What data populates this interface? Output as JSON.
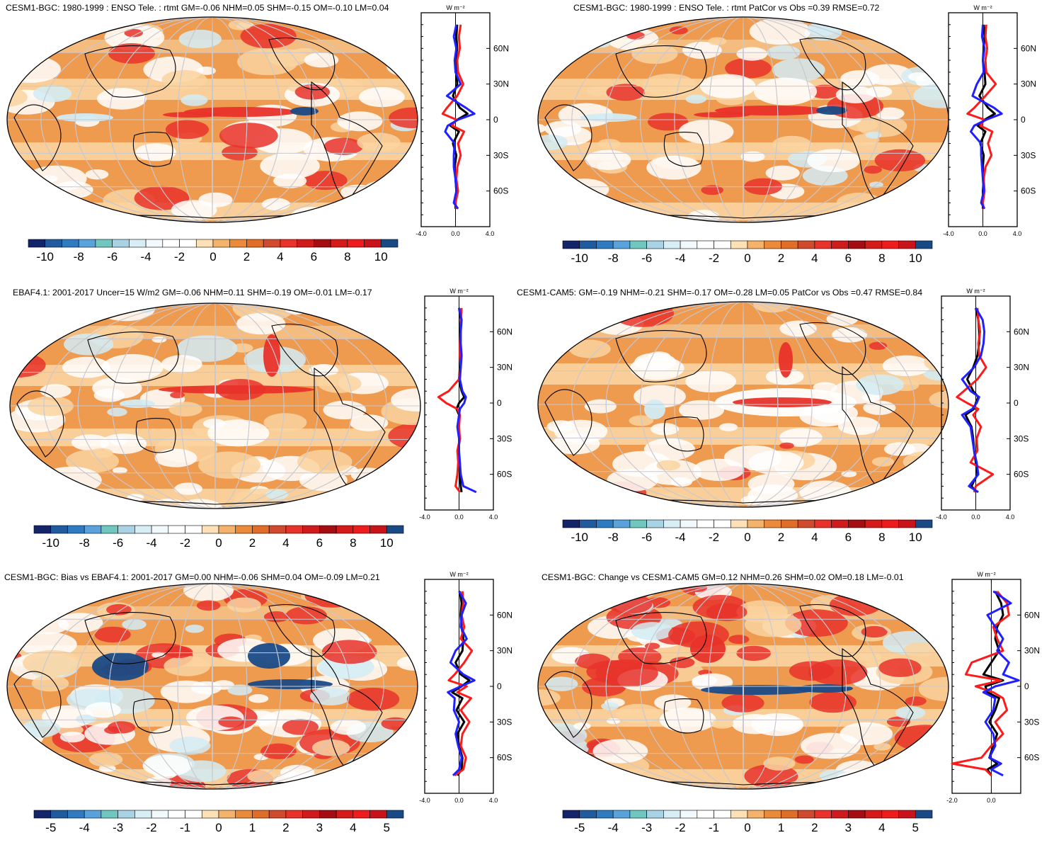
{
  "colors": {
    "palette": [
      "#14246a",
      "#1f5b9e",
      "#2f7bc2",
      "#5aa2db",
      "#6fc7c0",
      "#a9d3e4",
      "#d7eef5",
      "#f2f9fc",
      "#ffffff",
      "#ffffff",
      "#fde0b6",
      "#f5b26a",
      "#ea8a3a",
      "#e06d28",
      "#d24a2d",
      "#e8322a",
      "#cf1b1b",
      "#a40d12",
      "#d61a1a",
      "#ee1c1c",
      "#c8131b",
      "#1a4a86"
    ],
    "ocean_base": "#fad4a0",
    "warm": "#ee9a4f",
    "hot": "#e8322a",
    "cool": "#d2ecf4",
    "deepblue": "#1a4a86",
    "line_red": "#ff1a1a",
    "line_blue": "#1f1fff",
    "line_black": "#000000"
  },
  "panels": [
    {
      "id": "p1",
      "title": "CESM1-BGC: 1980-1999 : ENSO Tele. : rtmt GM=-0.06 NHM=0.05 SHM=-0.15 OM=-0.10 LM=0.04",
      "units": "W m⁻²",
      "colorbar_labels": [
        "-10",
        "-8",
        "-6",
        "-4",
        "-2",
        "0",
        "2",
        "4",
        "6",
        "8",
        "10"
      ],
      "zonal_xticks": [
        "-4.0",
        "0.0",
        "4.0"
      ],
      "lat_ticks": [
        "60N",
        "30N",
        "0",
        "30S",
        "60S"
      ]
    },
    {
      "id": "p2",
      "title": "CESM1-BGC: 1980-1999 : ENSO Tele. : rtmt PatCor vs Obs =0.39 RMSE=0.72",
      "units": "W m⁻²",
      "colorbar_labels": [
        "-10",
        "-8",
        "-6",
        "-4",
        "-2",
        "0",
        "2",
        "4",
        "6",
        "8",
        "10"
      ],
      "zonal_xticks": [
        "-4.0",
        "0.0",
        "4.0"
      ],
      "lat_ticks": [
        "60N",
        "30N",
        "0",
        "30S",
        "60S"
      ]
    },
    {
      "id": "p3",
      "title": "EBAF4.1: 2001-2017 Uncer=15 W/m2 GM=-0.06 NHM=0.11 SHM=-0.19 OM=-0.01 LM=-0.17",
      "units": "W m⁻²",
      "colorbar_labels": [
        "-10",
        "-8",
        "-6",
        "-4",
        "-2",
        "0",
        "2",
        "4",
        "6",
        "8",
        "10"
      ],
      "zonal_xticks": [
        "-4.0",
        "0.0",
        "4.0"
      ],
      "lat_ticks": [
        "60N",
        "30N",
        "0",
        "30S",
        "60S"
      ]
    },
    {
      "id": "p4",
      "title": "CESM1-CAM5: GM=-0.19 NHM=-0.21 SHM=-0.17 OM=-0.28 LM=0.05 PatCor vs Obs =0.47 RMSE=0.84",
      "units": "W m⁻²",
      "colorbar_labels": [
        "-10",
        "-8",
        "-6",
        "-4",
        "-2",
        "0",
        "2",
        "4",
        "6",
        "8",
        "10"
      ],
      "zonal_xticks": [
        "-4.0",
        "0.0",
        "4.0"
      ],
      "lat_ticks": [
        "60N",
        "30N",
        "0",
        "30S",
        "60S"
      ]
    },
    {
      "id": "p5",
      "title": "CESM1-BGC: Bias vs EBAF4.1: 2001-2017 GM=0.00 NHM=-0.06 SHM=0.04 OM=-0.09 LM=0.21",
      "units": "W m⁻²",
      "colorbar_labels": [
        "-5",
        "-4",
        "-3",
        "-2",
        "-1",
        "0",
        "1",
        "2",
        "3",
        "4",
        "5"
      ],
      "zonal_xticks": [
        "-4.0",
        "0.0",
        "4.0"
      ],
      "lat_ticks": [
        "60N",
        "30N",
        "0",
        "30S",
        "60S"
      ]
    },
    {
      "id": "p6",
      "title": "CESM1-BGC: Change vs CESM1-CAM5 GM=0.12 NHM=0.26 SHM=0.02 OM=0.18 LM=-0.01",
      "units": "W m⁻²",
      "colorbar_labels": [
        "-5",
        "-4",
        "-3",
        "-2",
        "-1",
        "0",
        "1",
        "2",
        "3",
        "4",
        "5"
      ],
      "zonal_xticks": [
        "-2.0",
        "0.0"
      ],
      "lat_ticks": [
        "60N",
        "30N",
        "0",
        "30S",
        "60S"
      ]
    }
  ],
  "chart_data": [
    {
      "type": "heatmap",
      "title": "CESM1-BGC: 1980-1999 : ENSO Tele. : rtmt GM=-0.06 NHM=0.05 SHM=-0.15 OM=-0.10 LM=0.04",
      "colorbar": {
        "min": -10,
        "max": 10,
        "ticks": [
          -10,
          -8,
          -6,
          -4,
          -2,
          0,
          2,
          4,
          6,
          8,
          10
        ]
      },
      "zonal_mean_profile": {
        "xlim": [
          -4,
          4
        ],
        "xticks": [
          -4.0,
          0.0,
          4.0
        ],
        "lat_ticks": [
          "60N",
          "30N",
          "0",
          "30S",
          "60S"
        ],
        "lat": [
          80,
          70,
          60,
          50,
          40,
          30,
          20,
          10,
          5,
          0,
          -5,
          -10,
          -20,
          -30,
          -40,
          -50,
          -60,
          -70,
          -75
        ],
        "series": [
          {
            "color": "#000000",
            "values": [
              0.2,
              0.1,
              0.2,
              0.0,
              0.1,
              0.2,
              -0.3,
              0.5,
              1.4,
              0.2,
              -0.6,
              0.4,
              -0.3,
              0.1,
              -0.1,
              0.0,
              0.1,
              0.0,
              0.0
            ]
          },
          {
            "color": "#ff1a1a",
            "values": [
              0.6,
              0.4,
              0.5,
              0.2,
              0.3,
              0.9,
              0.2,
              -1.0,
              -1.5,
              0.1,
              -0.4,
              1.0,
              0.3,
              0.6,
              0.2,
              0.1,
              0.3,
              0.0,
              0.1
            ]
          },
          {
            "color": "#1f1fff",
            "values": [
              0.1,
              -0.2,
              0.1,
              -0.1,
              0.0,
              0.6,
              -1.0,
              1.2,
              2.2,
              0.3,
              -0.9,
              -1.2,
              -0.1,
              -0.2,
              -0.2,
              0.0,
              0.1,
              -0.2,
              0.3
            ]
          }
        ]
      }
    },
    {
      "type": "heatmap",
      "title": "CESM1-BGC: 1980-1999 : ENSO Tele. : rtmt PatCor vs Obs =0.39 RMSE=0.72",
      "colorbar": {
        "min": -10,
        "max": 10,
        "ticks": [
          -10,
          -8,
          -6,
          -4,
          -2,
          0,
          2,
          4,
          6,
          8,
          10
        ]
      },
      "zonal_mean_profile": {
        "xlim": [
          -4,
          4
        ],
        "xticks": [
          -4.0,
          0.0,
          4.0
        ],
        "lat_ticks": [
          "60N",
          "30N",
          "0",
          "30S",
          "60S"
        ],
        "lat": [
          80,
          70,
          60,
          50,
          40,
          30,
          20,
          10,
          5,
          0,
          -5,
          -10,
          -20,
          -30,
          -40,
          -50,
          -60,
          -70,
          -75
        ],
        "series": [
          {
            "color": "#000000",
            "values": [
              0.1,
              0.2,
              0.1,
              0.0,
              0.2,
              0.3,
              -0.4,
              0.6,
              1.4,
              0.2,
              -0.6,
              0.3,
              -0.3,
              0.1,
              0.0,
              0.1,
              0.0,
              0.0,
              0.0
            ]
          },
          {
            "color": "#ff1a1a",
            "values": [
              0.4,
              0.3,
              0.5,
              0.3,
              0.4,
              1.5,
              0.3,
              -1.0,
              -1.8,
              0.2,
              -0.3,
              1.1,
              0.6,
              1.0,
              0.3,
              0.1,
              0.2,
              0.0,
              0.1
            ]
          },
          {
            "color": "#1f1fff",
            "values": [
              0.0,
              -0.1,
              0.2,
              0.0,
              0.1,
              -0.7,
              -1.2,
              1.3,
              2.2,
              0.4,
              -1.0,
              -1.4,
              -0.2,
              -0.2,
              -0.1,
              0.0,
              0.1,
              -0.2,
              0.2
            ]
          }
        ]
      }
    },
    {
      "type": "heatmap",
      "title": "EBAF4.1: 2001-2017 Uncer=15 W/m2 GM=-0.06 NHM=0.11 SHM=-0.19 OM=-0.01 LM=-0.17",
      "colorbar": {
        "min": -10,
        "max": 10,
        "ticks": [
          -10,
          -8,
          -6,
          -4,
          -2,
          0,
          2,
          4,
          6,
          8,
          10
        ]
      },
      "zonal_mean_profile": {
        "xlim": [
          -4,
          4
        ],
        "xticks": [
          -4.0,
          0.0,
          4.0
        ],
        "lat_ticks": [
          "60N",
          "30N",
          "0",
          "30S",
          "60S"
        ],
        "lat": [
          80,
          70,
          60,
          50,
          40,
          30,
          20,
          10,
          5,
          0,
          -5,
          -10,
          -20,
          -30,
          -40,
          -50,
          -60,
          -70,
          -75
        ],
        "series": [
          {
            "color": "#000000",
            "values": [
              0.0,
              0.2,
              0.1,
              0.1,
              0.2,
              0.1,
              0.0,
              0.3,
              0.6,
              0.0,
              -0.3,
              0.0,
              -0.1,
              0.1,
              -0.1,
              0.0,
              0.1,
              0.2,
              0.3
            ]
          },
          {
            "color": "#ff1a1a",
            "values": [
              0.3,
              0.2,
              0.2,
              0.1,
              0.1,
              0.2,
              0.0,
              -1.2,
              -2.4,
              -1.5,
              -0.2,
              0.1,
              0.0,
              0.1,
              -0.2,
              -0.1,
              -0.2,
              -0.4,
              0.1
            ]
          },
          {
            "color": "#1f1fff",
            "values": [
              0.0,
              0.3,
              0.2,
              0.2,
              0.3,
              0.2,
              0.1,
              0.4,
              0.8,
              0.6,
              0.1,
              0.0,
              -0.2,
              0.0,
              0.0,
              0.1,
              0.2,
              0.5,
              2.0
            ]
          }
        ]
      }
    },
    {
      "type": "heatmap",
      "title": "CESM1-CAM5: GM=-0.19 NHM=-0.21 SHM=-0.17 OM=-0.28 LM=0.05 PatCor vs Obs =0.47 RMSE=0.84",
      "colorbar": {
        "min": -10,
        "max": 10,
        "ticks": [
          -10,
          -8,
          -6,
          -4,
          -2,
          0,
          2,
          4,
          6,
          8,
          10
        ]
      },
      "zonal_mean_profile": {
        "xlim": [
          -4,
          4
        ],
        "xticks": [
          -4.0,
          0.0,
          4.0
        ],
        "lat_ticks": [
          "60N",
          "30N",
          "0",
          "30S",
          "60S"
        ],
        "lat": [
          80,
          70,
          60,
          50,
          40,
          30,
          20,
          10,
          5,
          0,
          -5,
          -10,
          -20,
          -30,
          -40,
          -50,
          -60,
          -70,
          -75
        ],
        "series": [
          {
            "color": "#000000",
            "values": [
              0.0,
              0.3,
              0.4,
              0.4,
              0.2,
              -0.3,
              -1.0,
              -0.3,
              0.3,
              0.0,
              -0.2,
              -1.2,
              -0.5,
              -0.3,
              -0.2,
              0.0,
              0.2,
              -0.5,
              0.1
            ]
          },
          {
            "color": "#ff1a1a",
            "values": [
              0.2,
              0.3,
              0.5,
              0.3,
              0.4,
              1.2,
              0.2,
              -1.4,
              -2.2,
              -1.0,
              0.3,
              -0.3,
              0.6,
              0.1,
              0.2,
              -0.6,
              2.0,
              0.0,
              -0.2
            ]
          },
          {
            "color": "#1f1fff",
            "values": [
              0.0,
              0.8,
              1.0,
              0.9,
              0.6,
              -0.2,
              -1.6,
              -0.6,
              0.4,
              0.1,
              -0.4,
              -1.6,
              -0.6,
              -0.4,
              -0.2,
              0.1,
              0.3,
              -0.8,
              0.3
            ]
          }
        ]
      }
    },
    {
      "type": "heatmap",
      "title": "CESM1-BGC: Bias vs EBAF4.1: 2001-2017 GM=0.00 NHM=-0.06 SHM=0.04 OM=-0.09 LM=0.21",
      "colorbar": {
        "min": -5,
        "max": 5,
        "ticks": [
          -5,
          -4,
          -3,
          -2,
          -1,
          0,
          1,
          2,
          3,
          4,
          5
        ]
      },
      "zonal_mean_profile": {
        "xlim": [
          -4,
          4
        ],
        "xticks": [
          -4.0,
          0.0,
          4.0
        ],
        "lat_ticks": [
          "60N",
          "30N",
          "0",
          "30S",
          "60S"
        ],
        "lat": [
          80,
          70,
          60,
          50,
          40,
          30,
          20,
          10,
          5,
          0,
          -5,
          -10,
          -20,
          -30,
          -40,
          -50,
          -60,
          -70,
          -75
        ],
        "series": [
          {
            "color": "#000000",
            "values": [
              0.1,
              0.3,
              0.2,
              0.3,
              0.5,
              0.4,
              -0.4,
              0.2,
              1.2,
              0.3,
              -0.8,
              0.4,
              -0.3,
              0.6,
              -0.2,
              0.0,
              0.4,
              0.3,
              -0.2
            ]
          },
          {
            "color": "#ff1a1a",
            "values": [
              0.4,
              0.5,
              0.3,
              0.6,
              0.2,
              1.5,
              0.6,
              -0.5,
              -1.2,
              0.9,
              -0.2,
              1.4,
              0.2,
              1.2,
              0.4,
              0.2,
              0.8,
              0.5,
              -0.5
            ]
          },
          {
            "color": "#1f1fff",
            "values": [
              0.0,
              0.8,
              0.3,
              0.2,
              0.9,
              -0.4,
              -1.0,
              0.5,
              1.8,
              0.2,
              -1.3,
              -0.5,
              -0.6,
              0.0,
              -0.4,
              -0.1,
              0.3,
              0.0,
              -0.7
            ]
          }
        ]
      }
    },
    {
      "type": "heatmap",
      "title": "CESM1-BGC: Change vs CESM1-CAM5 GM=0.12 NHM=0.26 SHM=0.02 OM=0.18 LM=-0.01",
      "colorbar": {
        "min": -5,
        "max": 5,
        "ticks": [
          -5,
          -4,
          -3,
          -2,
          -1,
          0,
          1,
          2,
          3,
          4,
          5
        ]
      },
      "zonal_mean_profile": {
        "xlim": [
          -2,
          1.5
        ],
        "xticks": [
          -2.0,
          0.0
        ],
        "lat_ticks": [
          "60N",
          "30N",
          "0",
          "30S",
          "60S"
        ],
        "lat": [
          80,
          70,
          60,
          50,
          40,
          30,
          20,
          10,
          5,
          0,
          -5,
          -10,
          -20,
          -30,
          -40,
          -50,
          -60,
          -65,
          -70,
          -75
        ],
        "series": [
          {
            "color": "#000000",
            "values": [
              0.2,
              0.5,
              0.6,
              0.3,
              0.2,
              0.4,
              0.0,
              -0.4,
              0.6,
              -0.3,
              -0.2,
              0.4,
              0.2,
              -0.1,
              0.3,
              0.1,
              -0.1,
              0.3,
              -0.2,
              0.0
            ]
          },
          {
            "color": "#ff1a1a",
            "values": [
              0.3,
              0.8,
              0.9,
              0.1,
              0.3,
              0.6,
              -1.0,
              -1.3,
              0.5,
              -0.8,
              0.1,
              0.6,
              0.8,
              0.2,
              0.6,
              0.0,
              -0.5,
              -2.0,
              -0.3,
              0.0
            ]
          },
          {
            "color": "#1f1fff",
            "values": [
              0.1,
              1.0,
              -0.2,
              0.2,
              0.6,
              0.3,
              0.9,
              0.6,
              1.4,
              0.2,
              -0.4,
              0.2,
              0.1,
              -0.3,
              0.1,
              0.2,
              -0.1,
              0.5,
              0.0,
              0.6
            ]
          }
        ]
      }
    }
  ]
}
